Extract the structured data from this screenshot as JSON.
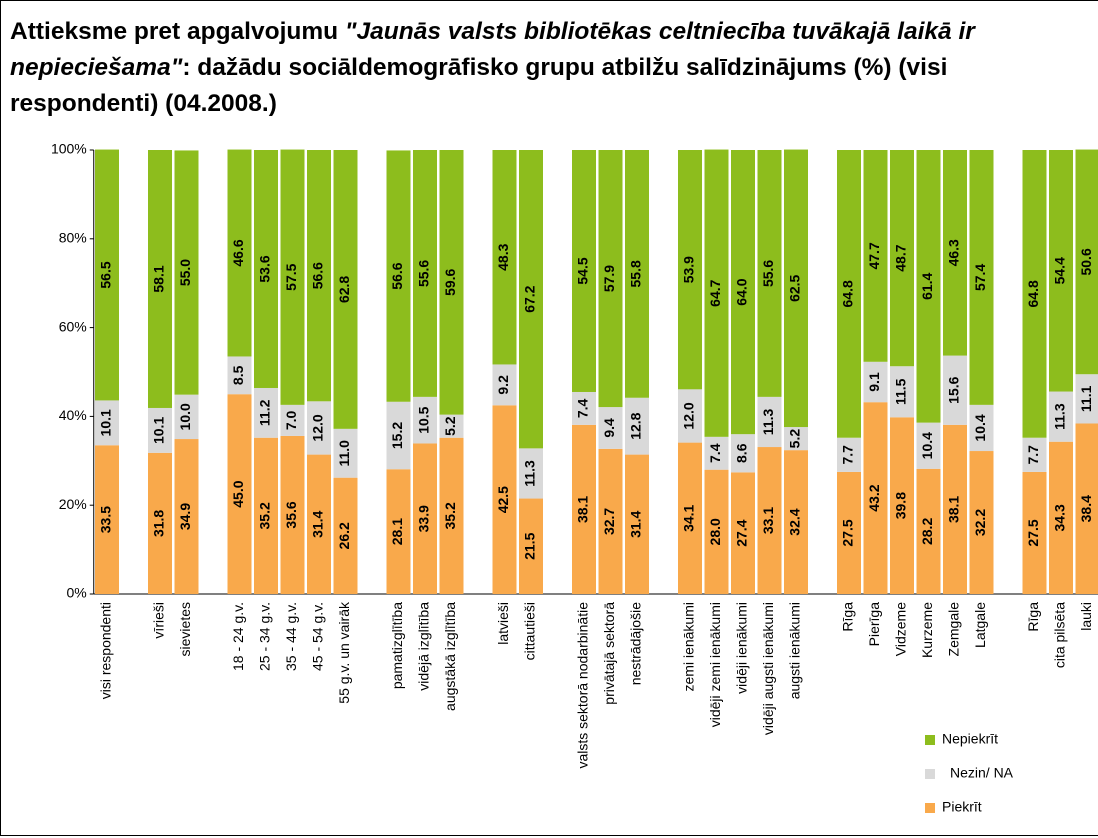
{
  "chart_data": {
    "type": "stacked_bar",
    "title": {
      "lead": "Attieksme pret apgalvojumu ",
      "quote": "\"Jaunās valsts bibliotēkas celtniecība tuvākajā laikā ir nepieciešama\"",
      "tail": ": dažādu sociāldemogrāfisko grupu atbilžu salīdzinājums (%) (visi respondenti) (04.2008.)"
    },
    "categories": [
      "visi respondenti",
      null,
      "vīrieši",
      "sievietes",
      null,
      "18 - 24 g.v.",
      "25 - 34 g.v.",
      "35 - 44 g.v.",
      "45 - 54 g.v.",
      "55 g.v. un vairāk",
      null,
      "pamatizglītība",
      "vidējā izglītība",
      "augstākā izglītība",
      null,
      "latvieši",
      "cittautieši",
      null,
      "valsts sektorā nodarbinātie",
      "privātajā sektorā",
      "nestrādājošie",
      null,
      "zemi ienākumi",
      "vidēji zemi ienākumi",
      "vidēji ienākumi",
      "vidēji augsti ienākumi",
      "augsti ienākumi",
      null,
      "Rīga",
      "Pierīga",
      "Vidzeme",
      "Kurzeme",
      "Zemgale",
      "Latgale",
      null,
      "Rīga",
      "cita pilsēta",
      "lauki"
    ],
    "series": [
      {
        "name": "Piekrīt",
        "color": "#f9a94b",
        "values": [
          33.5,
          null,
          31.8,
          34.9,
          null,
          45.0,
          35.2,
          35.6,
          31.4,
          26.2,
          null,
          28.1,
          33.9,
          35.2,
          null,
          42.5,
          21.5,
          null,
          38.1,
          32.7,
          31.4,
          null,
          34.1,
          28.0,
          27.4,
          33.1,
          32.4,
          null,
          27.5,
          43.2,
          39.8,
          28.2,
          38.1,
          32.2,
          null,
          27.5,
          34.3,
          38.4
        ],
        "value_labels": [
          "33.5",
          null,
          "31.8",
          "34.9",
          null,
          "45.0",
          "35.2",
          "35.6",
          "31.4",
          "26.2",
          null,
          "28.1",
          "33.9",
          "35.2",
          null,
          "42.5",
          "21.5",
          null,
          "38.1",
          "32.7",
          "31.4",
          null,
          "34.1",
          "28.0",
          "27.4",
          "33.1",
          "32.4",
          null,
          "27.5",
          "43.2",
          "39.8",
          "28.2",
          "38.1",
          "32.2",
          null,
          "27.5",
          "34.3",
          "38.4"
        ]
      },
      {
        "name": "Nezin/ NA",
        "color": "#d9d9d9",
        "values": [
          10.1,
          null,
          10.1,
          10.0,
          null,
          8.5,
          11.2,
          7.0,
          12.0,
          11.0,
          null,
          15.2,
          10.5,
          5.2,
          null,
          9.2,
          11.3,
          null,
          7.4,
          9.4,
          12.8,
          null,
          12.0,
          7.4,
          8.6,
          11.3,
          5.2,
          null,
          7.7,
          9.1,
          11.5,
          10.4,
          15.6,
          10.4,
          null,
          7.7,
          11.3,
          11.1
        ],
        "value_labels": [
          "10.1",
          null,
          "10.1",
          "10.0",
          null,
          "8.5",
          "11.2",
          "7.0",
          "12.0",
          "11.0",
          null,
          "15.2",
          "10.5",
          "5.2",
          null,
          "9.2",
          "11.3",
          null,
          "7.4",
          "9.4",
          "12.8",
          null,
          "12.0",
          "7.4",
          "8.6",
          "11.3",
          "5.2",
          null,
          "7.7",
          "9.1",
          "11.5",
          "10.4",
          "15.6",
          "10.4",
          null,
          "7.7",
          "11.3",
          "11.1"
        ]
      },
      {
        "name": "Nepiekrīt",
        "color": "#8dbd1d",
        "values": [
          56.5,
          null,
          58.1,
          55.0,
          null,
          46.6,
          53.6,
          57.5,
          56.6,
          62.8,
          null,
          56.6,
          55.6,
          59.6,
          null,
          48.3,
          67.2,
          null,
          54.5,
          57.9,
          55.8,
          null,
          53.9,
          64.7,
          64.0,
          55.6,
          62.5,
          null,
          64.8,
          47.7,
          48.7,
          61.4,
          46.3,
          57.4,
          null,
          64.8,
          54.4,
          50.6
        ],
        "value_labels": [
          "56.5",
          null,
          "58.1",
          "55.0",
          null,
          "46.6",
          "53.6",
          "57.5",
          "56.6",
          "62.8",
          null,
          "56.6",
          "55.6",
          "59.6",
          null,
          "48.3",
          "67.2",
          null,
          "54.5",
          "57.9",
          "55.8",
          null,
          "53.9",
          "64.7",
          "64.0",
          "55.6",
          "62.5",
          null,
          "64.8",
          "47.7",
          "48.7",
          "61.4",
          "46.3",
          "57.4",
          null,
          "64.8",
          "54.4",
          "50.6"
        ]
      }
    ],
    "ylim": [
      0,
      100
    ],
    "yticks": [
      {
        "value": 0,
        "label": "0%"
      },
      {
        "value": 20,
        "label": "20%"
      },
      {
        "value": 40,
        "label": "40%"
      },
      {
        "value": 60,
        "label": "60%"
      },
      {
        "value": 80,
        "label": "80%"
      },
      {
        "value": 100,
        "label": "100%"
      }
    ],
    "legend": "lower right"
  }
}
